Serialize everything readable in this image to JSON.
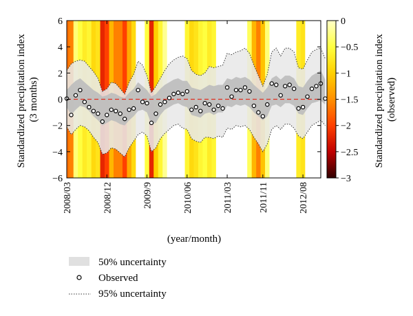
{
  "chart_data": {
    "type": "line",
    "xlabel": "(year/month)",
    "ylabel_lines": [
      "Standardized precipitation index",
      "(3 months)"
    ],
    "ylim": [
      -6,
      6
    ],
    "yticks": [
      "6",
      "4",
      "2",
      "0",
      "−2",
      "−4",
      "−6"
    ],
    "yticks_values": [
      6,
      4,
      2,
      0,
      -2,
      -4,
      -6
    ],
    "xlim": [
      0,
      57
    ],
    "xticks": [
      "2008/03",
      "2008/12",
      "2009/9",
      "2010/06",
      "2011/03",
      "2011/11",
      "2012/08"
    ],
    "xticks_values": [
      0,
      9,
      18,
      27,
      36,
      44,
      53
    ],
    "zero_line": {
      "value": 0,
      "color": "#e03020",
      "style": "dashed"
    },
    "colorbar": {
      "label_lines": [
        "Standardized precipitation index",
        "(observed)"
      ],
      "range": [
        -3,
        0
      ],
      "ticks": [
        "0",
        "−0.5",
        "−1",
        "−1.5",
        "−2",
        "−2.5",
        "−3"
      ],
      "ticks_values": [
        0,
        -0.5,
        -1,
        -1.5,
        -2,
        -2.5,
        -3
      ],
      "colormap": [
        "#ffffc8",
        "#ffff40",
        "#ffd000",
        "#ff9000",
        "#ff4000",
        "#c00000",
        "#300000"
      ]
    },
    "observed": [
      0.05,
      -1.2,
      0.3,
      0.7,
      -0.2,
      -0.6,
      -0.9,
      -1.1,
      -1.7,
      -1.2,
      -0.8,
      -0.9,
      -1.1,
      -1.5,
      -0.8,
      -0.7,
      0.7,
      -0.2,
      -0.3,
      -1.8,
      -1.1,
      -0.4,
      -0.2,
      0.1,
      0.4,
      0.5,
      0.4,
      0.6,
      -0.8,
      -0.6,
      -0.9,
      -0.3,
      -0.4,
      -0.8,
      -0.5,
      -0.7,
      0.9,
      0.2,
      0.7,
      0.7,
      0.9,
      0.6,
      -0.5,
      -1.0,
      -1.3,
      -0.4,
      1.2,
      1.1,
      0.3,
      1.0,
      1.1,
      0.8,
      -0.7,
      -0.6,
      0.2,
      0.8,
      1.0,
      1.2,
      0.05
    ],
    "uncertainty_50": {
      "lower": [
        -0.6,
        -1.2,
        -0.8,
        -0.5,
        -0.6,
        -0.9,
        -1.3,
        -1.6,
        -2.0,
        -1.8,
        -1.6,
        -1.7,
        -1.9,
        -2.0,
        -1.6,
        -1.3,
        -0.9,
        -0.8,
        -1.0,
        -1.9,
        -1.8,
        -1.2,
        -0.8,
        -0.6,
        -0.4,
        -0.3,
        -0.5,
        -0.6,
        -1.2,
        -1.3,
        -1.4,
        -1.1,
        -1.0,
        -1.2,
        -1.0,
        -1.0,
        -0.5,
        -0.6,
        -0.4,
        -0.5,
        -0.4,
        -0.6,
        -1.0,
        -1.3,
        -1.6,
        -1.3,
        -0.5,
        -0.4,
        -0.6,
        -0.3,
        -0.3,
        -0.5,
        -1.1,
        -1.2,
        -0.7,
        -0.3,
        -0.2,
        -0.1,
        -0.4
      ],
      "upper": [
        0.7,
        1.1,
        1.4,
        1.6,
        1.3,
        1.0,
        0.7,
        0.5,
        0.2,
        0.3,
        0.5,
        0.4,
        0.2,
        0.1,
        0.5,
        0.8,
        1.3,
        1.0,
        0.7,
        0.2,
        0.4,
        0.8,
        1.1,
        1.3,
        1.5,
        1.6,
        1.4,
        1.4,
        0.9,
        0.8,
        0.7,
        0.9,
        1.1,
        1.0,
        1.1,
        1.1,
        1.6,
        1.5,
        1.7,
        1.6,
        1.7,
        1.5,
        1.1,
        0.8,
        0.5,
        0.9,
        1.6,
        1.8,
        1.5,
        1.8,
        1.8,
        1.6,
        1.0,
        0.9,
        1.4,
        1.8,
        2.0,
        2.2,
        1.5
      ]
    },
    "uncertainty_95": {
      "lower": [
        -2.1,
        -2.7,
        -2.3,
        -2.0,
        -2.1,
        -2.4,
        -2.9,
        -3.3,
        -4.2,
        -4.1,
        -3.7,
        -3.8,
        -4.1,
        -4.4,
        -3.7,
        -3.2,
        -2.7,
        -2.5,
        -2.8,
        -4.0,
        -3.7,
        -3.0,
        -2.6,
        -2.3,
        -2.0,
        -1.9,
        -2.2,
        -2.3,
        -3.0,
        -3.2,
        -3.3,
        -2.9,
        -2.9,
        -3.0,
        -2.8,
        -2.9,
        -2.2,
        -2.3,
        -2.0,
        -2.1,
        -2.0,
        -2.3,
        -2.9,
        -3.4,
        -4.0,
        -3.4,
        -2.3,
        -2.0,
        -2.3,
        -1.9,
        -1.9,
        -2.2,
        -2.8,
        -3.0,
        -2.5,
        -2.0,
        -1.8,
        -1.6,
        -2.0
      ],
      "upper": [
        2.2,
        2.7,
        2.9,
        3.0,
        2.9,
        2.5,
        2.1,
        1.6,
        0.6,
        0.8,
        1.3,
        1.2,
        0.8,
        0.4,
        1.3,
        1.9,
        2.9,
        2.6,
        1.8,
        0.5,
        1.0,
        1.6,
        2.2,
        2.7,
        3.0,
        3.2,
        3.3,
        3.1,
        2.2,
        1.9,
        1.8,
        2.0,
        2.5,
        2.4,
        2.5,
        2.6,
        3.5,
        3.4,
        3.6,
        3.7,
        3.9,
        3.5,
        2.6,
        1.8,
        1.0,
        1.9,
        3.6,
        3.9,
        3.3,
        3.9,
        3.9,
        3.6,
        2.4,
        2.3,
        3.0,
        3.6,
        3.8,
        3.9,
        3.1
      ]
    },
    "observed_spi_background": [
      -1.7,
      -1.6,
      -0.3,
      -0.5,
      -0.7,
      -0.6,
      -0.9,
      -0.8,
      -2.2,
      -2.0,
      -1.2,
      -1.6,
      -1.6,
      -2.0,
      -1.3,
      -0.9,
      0,
      0,
      -0.5,
      -2.2,
      -1.0,
      -0.6,
      -0.2,
      0,
      0,
      0,
      0,
      -0.6,
      -0.9,
      -0.8,
      -0.6,
      -0.5,
      -0.7,
      -0.6,
      0,
      0,
      0,
      0,
      0,
      0,
      0,
      -0.4,
      -1.2,
      -1.6,
      -1.1,
      -0.3,
      0,
      0,
      0,
      0,
      0,
      0,
      -0.7,
      -0.8,
      0,
      0,
      0,
      0,
      0
    ],
    "legend": [
      {
        "key": "fifty",
        "label": "50% uncertainty",
        "symbol": "shaded-box"
      },
      {
        "key": "obs",
        "label": "Observed",
        "symbol": "circle"
      },
      {
        "key": "ninety_five",
        "label": "95% uncertainty",
        "symbol": "dotted-line"
      }
    ]
  },
  "colors": {
    "band95": "#e8e8e8",
    "band50": "#bdbdbd",
    "axis": "#000000"
  }
}
